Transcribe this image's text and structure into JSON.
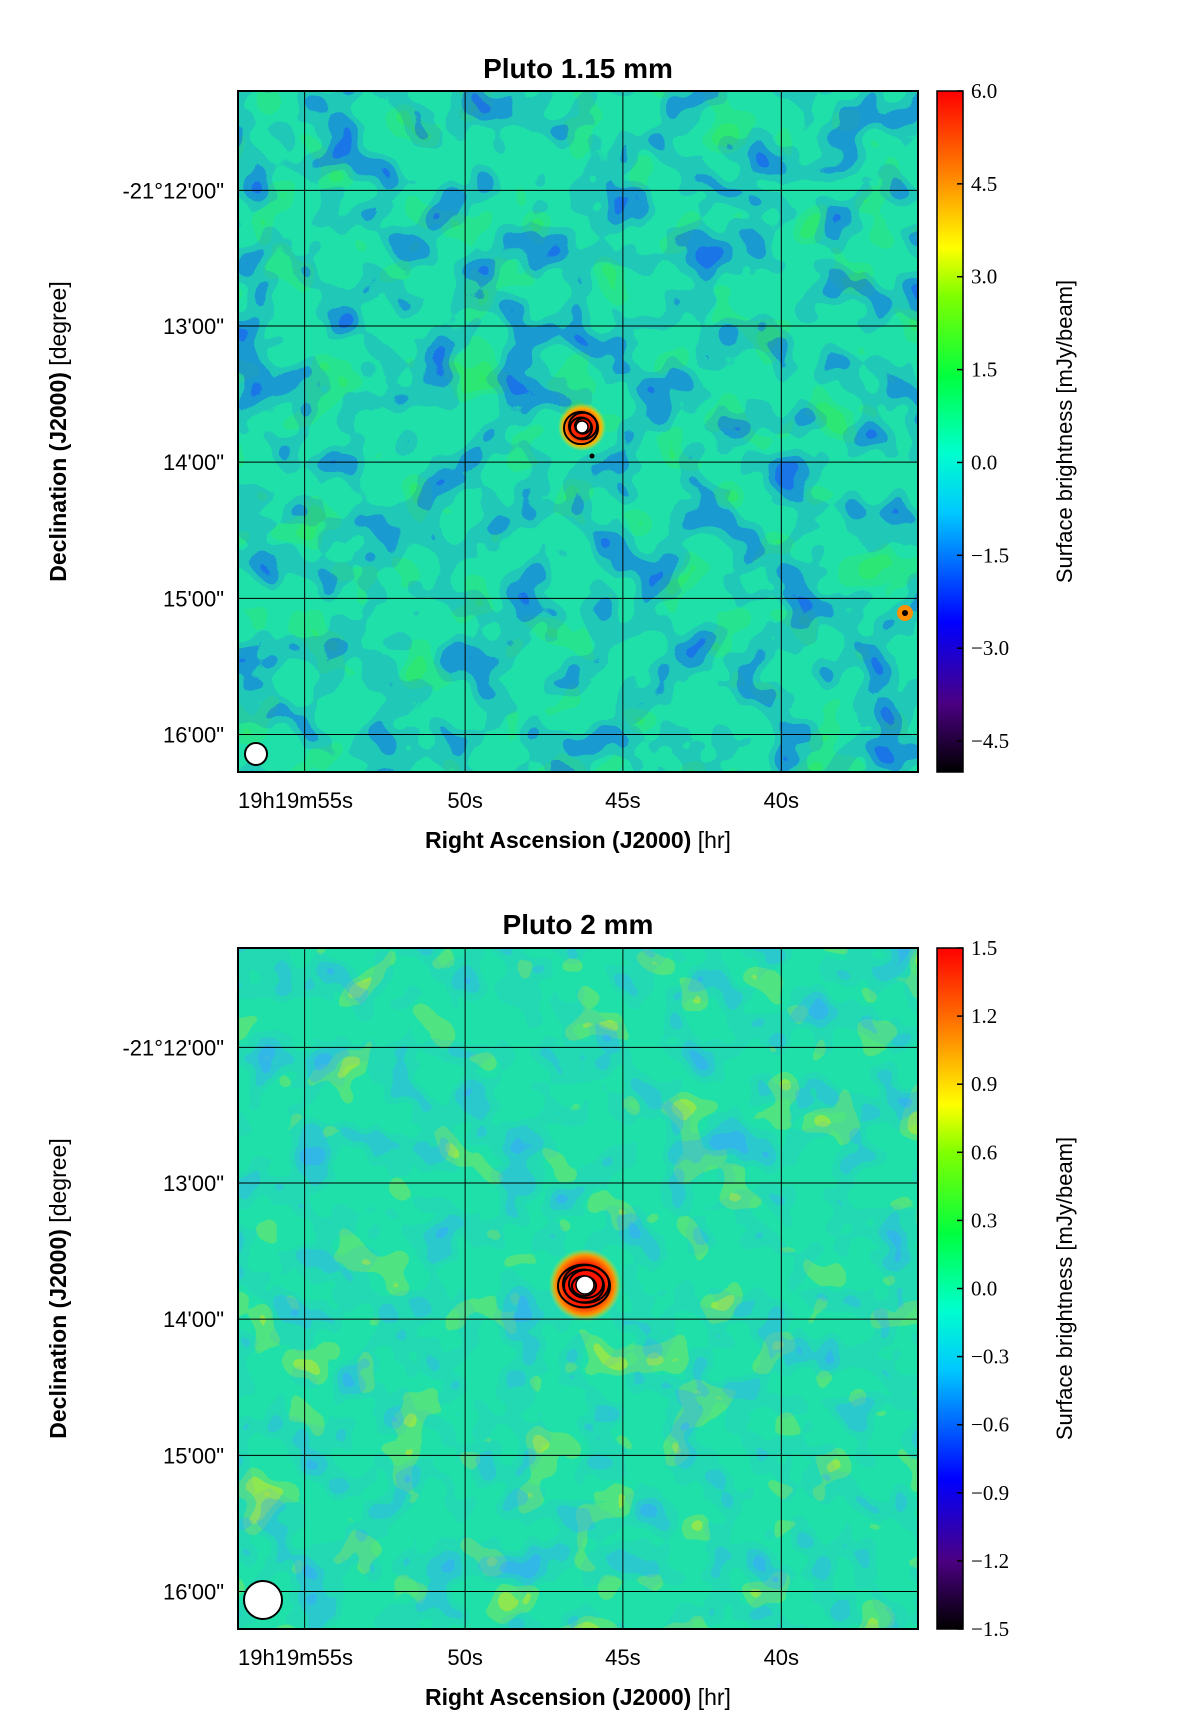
{
  "chart_data": [
    {
      "type": "heatmap",
      "title": "Pluto 1.15 mm",
      "xlabel_bold": "Right Ascension (J2000)",
      "xlabel_unit": "[hr]",
      "ylabel_bold": "Declination (J2000)",
      "ylabel_unit": "[degree]",
      "x_tick_labels": [
        "19h19m55s",
        "50s",
        "45s",
        "40s"
      ],
      "y_tick_labels": [
        "-21°12'00\"",
        "13'00\"",
        "14'00\"",
        "15'00\"",
        "16'00\""
      ],
      "colorbar": {
        "label": "Surface brightness [mJy/beam]",
        "range": [
          -5.0,
          6.0
        ],
        "ticks": [
          {
            "value": 6.0,
            "label": "6.0"
          },
          {
            "value": 4.5,
            "label": "4.5"
          },
          {
            "value": 3.0,
            "label": "3.0"
          },
          {
            "value": 1.5,
            "label": "1.5"
          },
          {
            "value": 0.0,
            "label": "0.0"
          },
          {
            "value": -1.5,
            "label": "−1.5"
          },
          {
            "value": -3.0,
            "label": "−3.0"
          },
          {
            "value": -4.5,
            "label": "−4.5"
          }
        ],
        "colormap": [
          "#000000",
          "#4b0082",
          "#0000ff",
          "#00ffff",
          "#00ff00",
          "#ffff00",
          "#ff8000",
          "#ff0000"
        ]
      },
      "grid": true,
      "source": {
        "ra": "19h19m46.2s",
        "dec": "-21°13'46\"",
        "contours": 4
      }
    },
    {
      "type": "heatmap",
      "title": "Pluto 2 mm",
      "xlabel_bold": "Right Ascension (J2000)",
      "xlabel_unit": "[hr]",
      "ylabel_bold": "Declination (J2000)",
      "ylabel_unit": "[degree]",
      "x_tick_labels": [
        "19h19m55s",
        "50s",
        "45s",
        "40s"
      ],
      "y_tick_labels": [
        "-21°12'00\"",
        "13'00\"",
        "14'00\"",
        "15'00\"",
        "16'00\""
      ],
      "colorbar": {
        "label": "Surface brightness [mJy/beam]",
        "range": [
          -1.5,
          1.5
        ],
        "ticks": [
          {
            "value": 1.5,
            "label": "1.5"
          },
          {
            "value": 1.2,
            "label": "1.2"
          },
          {
            "value": 0.9,
            "label": "0.9"
          },
          {
            "value": 0.6,
            "label": "0.6"
          },
          {
            "value": 0.3,
            "label": "0.3"
          },
          {
            "value": 0.0,
            "label": "0.0"
          },
          {
            "value": -0.3,
            "label": "−0.3"
          },
          {
            "value": -0.6,
            "label": "−0.6"
          },
          {
            "value": -0.9,
            "label": "−0.9"
          },
          {
            "value": -1.2,
            "label": "−1.2"
          },
          {
            "value": -1.5,
            "label": "−1.5"
          }
        ],
        "colormap": [
          "#000000",
          "#4b0082",
          "#0000ff",
          "#00ffff",
          "#00ff00",
          "#ffff00",
          "#ff8000",
          "#ff0000"
        ]
      },
      "grid": true,
      "source": {
        "ra": "19h19m46.2s",
        "dec": "-21°13'46\"",
        "contours": 5
      }
    }
  ]
}
